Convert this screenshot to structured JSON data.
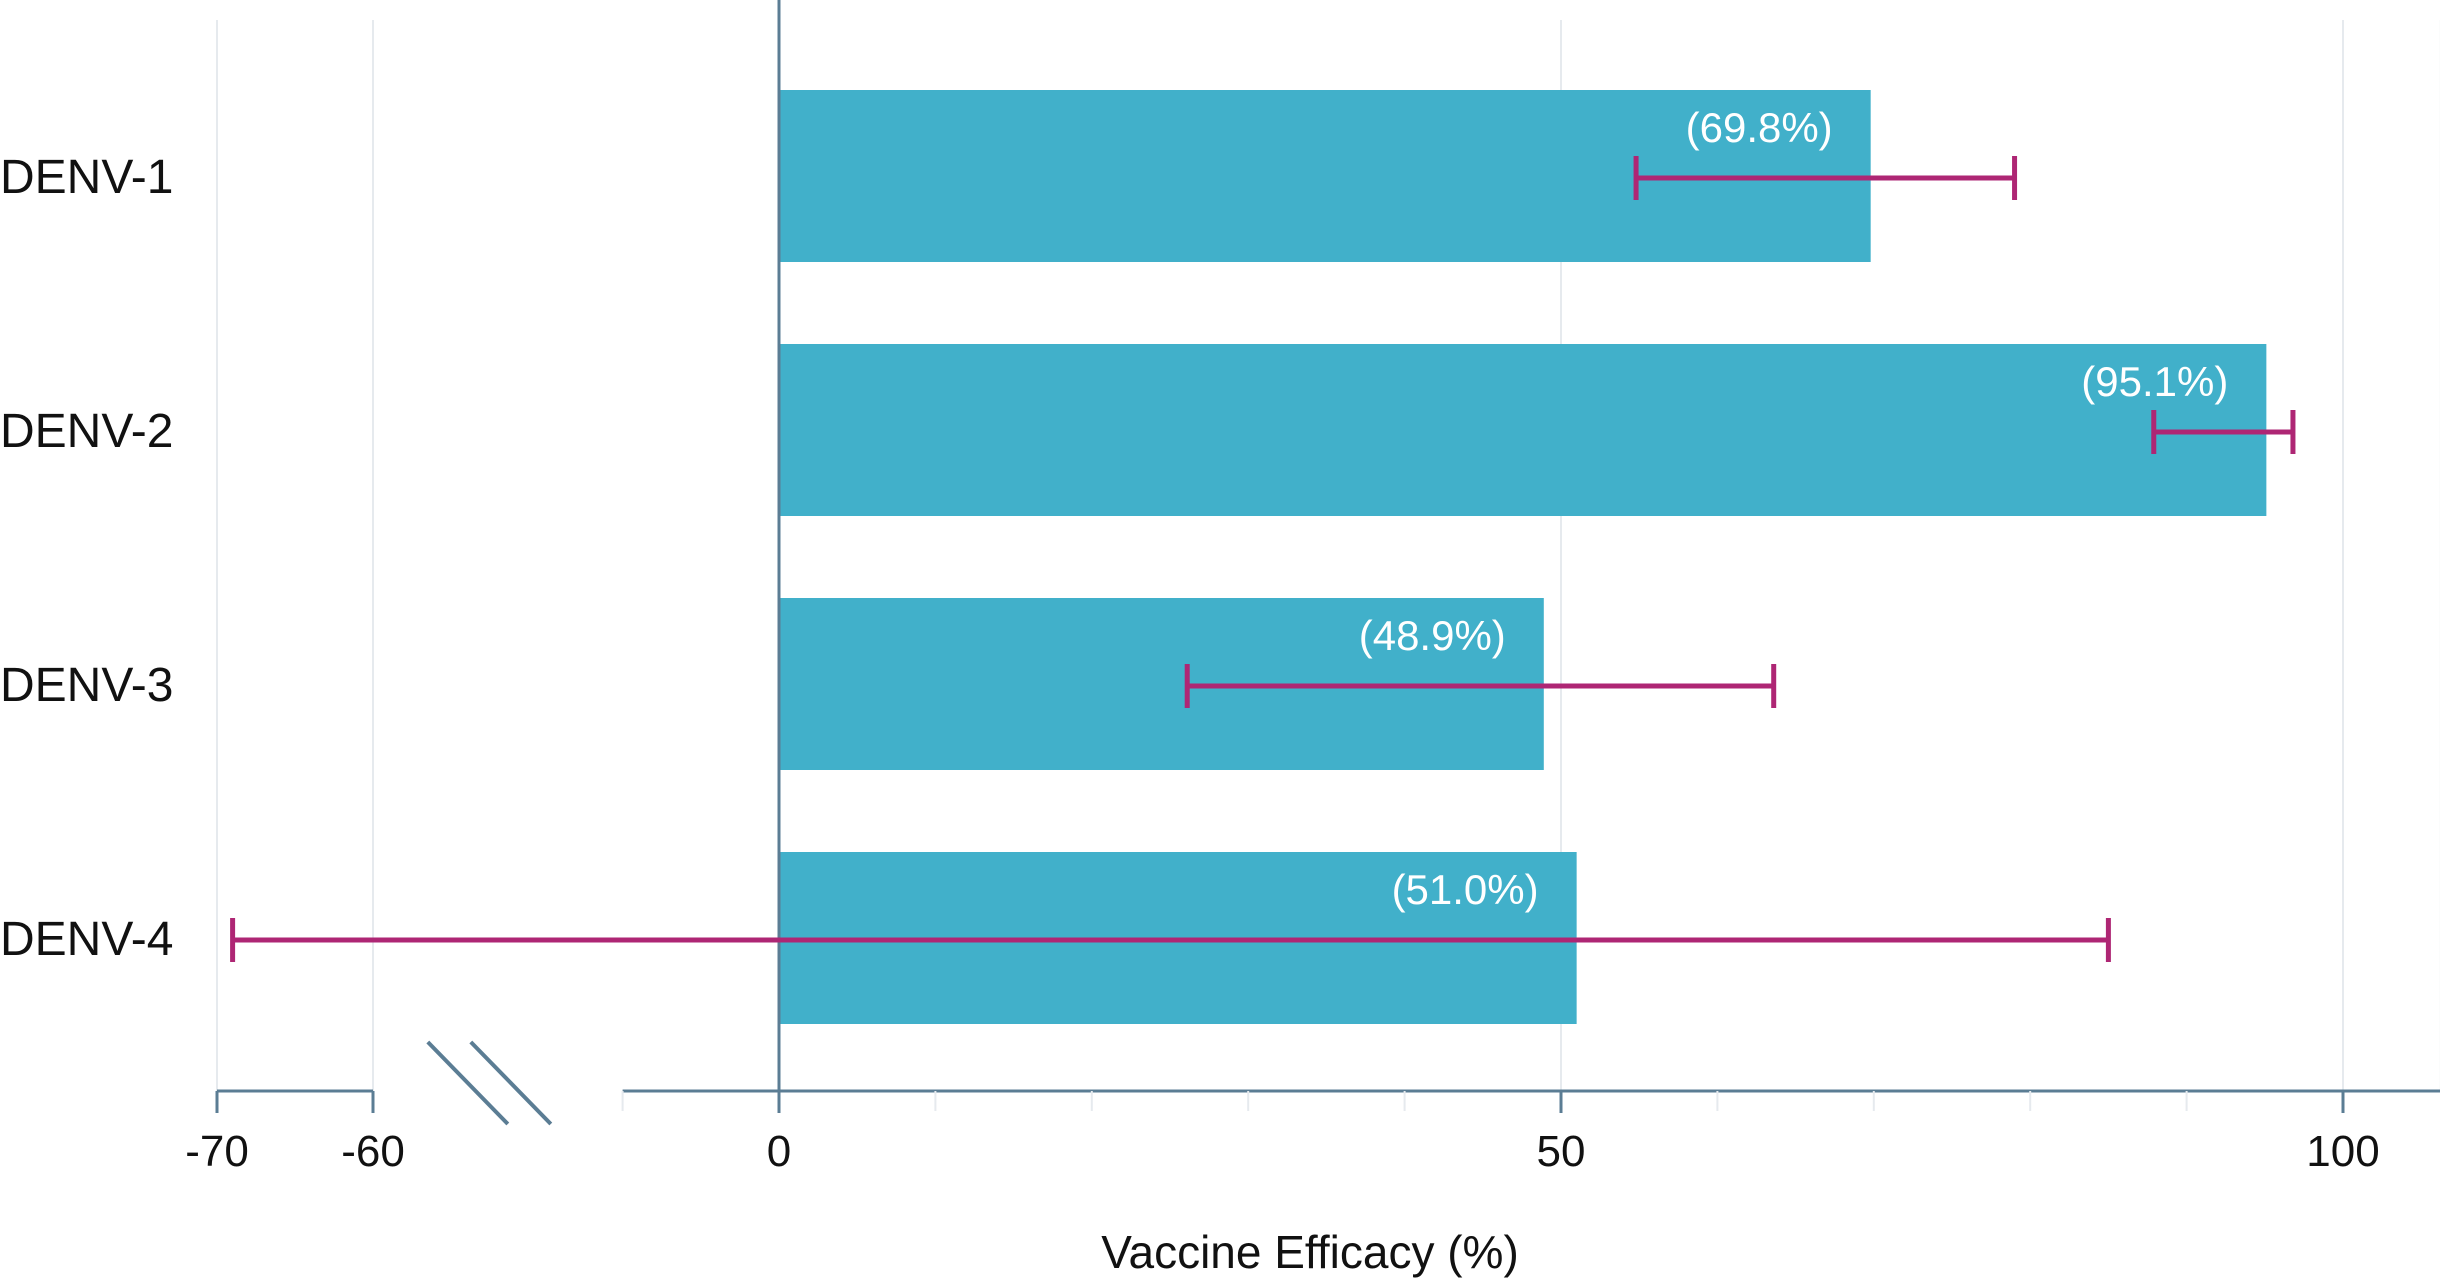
{
  "chart_data": {
    "type": "bar",
    "orientation": "horizontal",
    "xlabel": "Vaccine Efficacy (%)",
    "ylabel": "",
    "xlim": [
      -70,
      106
    ],
    "axis_break": [
      -60,
      -10
    ],
    "grid": true,
    "x_ticks": [
      -70,
      -60,
      0,
      50,
      100
    ],
    "x_tick_labels": [
      "-70",
      "-60",
      "0",
      "50",
      "100"
    ],
    "x_minor_ticks": [
      -10,
      10,
      20,
      30,
      40,
      60,
      70,
      80,
      90
    ],
    "categories": [
      "DENV-1",
      "DENV-2",
      "DENV-3",
      "DENV-4"
    ],
    "values": [
      69.8,
      95.1,
      48.9,
      51.0
    ],
    "value_labels": [
      "(69.8%)",
      "(95.1%)",
      "(48.9%)",
      "(51.0%)"
    ],
    "ci_lower": [
      54.8,
      87.9,
      26.1,
      -69.0
    ],
    "ci_upper": [
      79.0,
      96.8,
      63.6,
      85.0
    ],
    "colors": {
      "bar": "#41b0ca",
      "error_bar": "#ae2674",
      "axis": "#5b7d94",
      "grid": "#e6eaee",
      "break_mark": "#5b7d94"
    }
  }
}
